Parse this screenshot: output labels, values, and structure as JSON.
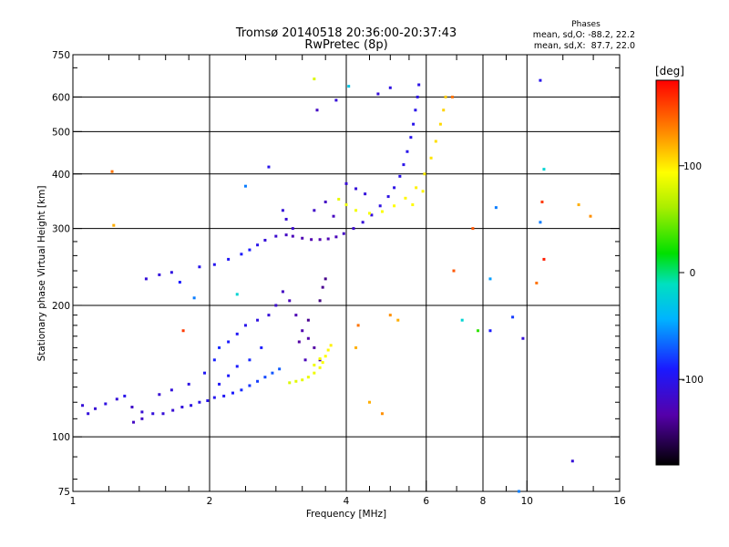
{
  "chart_data": {
    "type": "scatter",
    "title": "Tromsø 20140518 20:36:00-20:37:43",
    "subtitle": "RwPretec (8p)",
    "xlabel": "Frequency [MHz]",
    "ylabel": "Stationary phase Virtual Height [km]",
    "x_scale": "log",
    "y_scale": "log",
    "xlim": [
      1,
      16
    ],
    "ylim": [
      75,
      750
    ],
    "x_ticks": [
      1,
      2,
      4,
      6,
      8,
      10,
      16
    ],
    "x_tick_labels": [
      "1",
      "2",
      "4",
      "6",
      "8",
      "10",
      "16"
    ],
    "y_ticks": [
      75,
      100,
      200,
      300,
      400,
      500,
      600,
      750
    ],
    "y_tick_labels": [
      "75",
      "100",
      "200",
      "300",
      "400",
      "500",
      "600",
      "750"
    ],
    "grid": true,
    "stats": {
      "heading": "Phases",
      "line_o": "mean, sd,O: -88.2, 22.2",
      "line_x": "mean, sd,X:  87.7, 22.0"
    },
    "colorbar": {
      "label": "[deg]",
      "range": [
        -180,
        180
      ],
      "ticks": [
        100,
        0,
        -100
      ],
      "tick_labels": [
        "100",
        "0",
        "-100"
      ]
    },
    "series": [
      {
        "trace": "lower-o",
        "points": [
          [
            1.05,
            118,
            -110
          ],
          [
            1.08,
            113,
            -108
          ],
          [
            1.12,
            116,
            -112
          ],
          [
            1.18,
            119,
            -105
          ],
          [
            1.25,
            122,
            -110
          ],
          [
            1.3,
            124,
            -100
          ],
          [
            1.35,
            117,
            -118
          ],
          [
            1.42,
            114,
            -112
          ],
          [
            1.5,
            113,
            -108
          ],
          [
            1.58,
            113,
            -110
          ],
          [
            1.66,
            115,
            -112
          ],
          [
            1.74,
            117,
            -108
          ],
          [
            1.82,
            118,
            -105
          ],
          [
            1.9,
            120,
            -102
          ],
          [
            1.98,
            121,
            -100
          ],
          [
            2.05,
            123,
            -98
          ],
          [
            2.15,
            124,
            -95
          ],
          [
            2.25,
            126,
            -90
          ],
          [
            2.35,
            128,
            -85
          ],
          [
            2.45,
            131,
            -82
          ],
          [
            2.55,
            134,
            -80
          ],
          [
            2.65,
            137,
            -76
          ],
          [
            2.75,
            140,
            -72
          ],
          [
            2.85,
            143,
            -70
          ],
          [
            1.36,
            108,
            -120
          ],
          [
            1.42,
            110,
            -118
          ],
          [
            1.55,
            125,
            -112
          ],
          [
            1.65,
            128,
            -108
          ],
          [
            1.8,
            132,
            -104
          ],
          [
            1.95,
            140,
            -95
          ],
          [
            2.05,
            150,
            -88
          ],
          [
            2.1,
            160,
            -85
          ],
          [
            2.2,
            165,
            -90
          ],
          [
            2.3,
            172,
            -95
          ],
          [
            2.4,
            180,
            -100
          ],
          [
            2.55,
            185,
            -105
          ],
          [
            2.7,
            190,
            -110
          ],
          [
            2.8,
            200,
            -115
          ],
          [
            2.9,
            215,
            -120
          ],
          [
            3.0,
            205,
            -125
          ],
          [
            3.1,
            190,
            -128
          ],
          [
            3.2,
            175,
            -130
          ],
          [
            3.3,
            168,
            -132
          ],
          [
            3.4,
            160,
            -135
          ],
          [
            3.5,
            150,
            -138
          ],
          [
            3.55,
            220,
            -140
          ],
          [
            3.6,
            230,
            -142
          ],
          [
            3.5,
            205,
            -145
          ],
          [
            3.3,
            185,
            -140
          ],
          [
            3.15,
            165,
            -135
          ],
          [
            3.25,
            150,
            -125
          ],
          [
            2.6,
            160,
            -90
          ],
          [
            2.45,
            150,
            -85
          ],
          [
            2.3,
            145,
            -90
          ],
          [
            2.2,
            138,
            -92
          ],
          [
            2.1,
            132,
            -95
          ]
        ]
      },
      {
        "trace": "lower-x",
        "points": [
          [
            3.0,
            133,
            80
          ],
          [
            3.1,
            134,
            82
          ],
          [
            3.2,
            135,
            84
          ],
          [
            3.3,
            137,
            86
          ],
          [
            3.4,
            140,
            88
          ],
          [
            3.5,
            144,
            90
          ],
          [
            3.55,
            148,
            92
          ],
          [
            3.6,
            153,
            94
          ],
          [
            3.65,
            158,
            96
          ],
          [
            3.7,
            162,
            98
          ],
          [
            3.4,
            146,
            88
          ],
          [
            3.5,
            151,
            90
          ]
        ]
      },
      {
        "trace": "upper-o",
        "points": [
          [
            1.45,
            230,
            -110
          ],
          [
            1.55,
            235,
            -108
          ],
          [
            1.65,
            238,
            -105
          ],
          [
            1.9,
            245,
            -100
          ],
          [
            2.05,
            248,
            -98
          ],
          [
            2.2,
            255,
            -95
          ],
          [
            2.35,
            262,
            -92
          ],
          [
            2.45,
            268,
            -90
          ],
          [
            2.55,
            275,
            -100
          ],
          [
            2.65,
            282,
            -110
          ],
          [
            2.8,
            288,
            -115
          ],
          [
            2.95,
            290,
            -120
          ],
          [
            3.05,
            288,
            -125
          ],
          [
            3.2,
            285,
            -128
          ],
          [
            3.35,
            283,
            -130
          ],
          [
            3.5,
            283,
            -130
          ],
          [
            3.65,
            284,
            -128
          ],
          [
            3.8,
            287,
            -125
          ],
          [
            3.95,
            292,
            -120
          ],
          [
            4.15,
            300,
            -115
          ],
          [
            4.35,
            310,
            -110
          ],
          [
            4.55,
            322,
            -108
          ],
          [
            4.75,
            338,
            -105
          ],
          [
            4.95,
            355,
            -104
          ],
          [
            5.1,
            372,
            -103
          ],
          [
            5.25,
            395,
            -102
          ],
          [
            5.35,
            420,
            -101
          ],
          [
            5.45,
            450,
            -100
          ],
          [
            5.55,
            485,
            -100
          ],
          [
            5.62,
            520,
            -100
          ],
          [
            5.68,
            560,
            -101
          ],
          [
            5.74,
            600,
            -102
          ],
          [
            5.78,
            640,
            -103
          ],
          [
            2.9,
            330,
            -110
          ],
          [
            2.95,
            315,
            -112
          ],
          [
            3.05,
            300,
            -115
          ],
          [
            3.4,
            330,
            -118
          ],
          [
            3.6,
            345,
            -120
          ],
          [
            3.75,
            320,
            -122
          ],
          [
            4.0,
            380,
            -112
          ],
          [
            4.2,
            370,
            -110
          ],
          [
            4.4,
            360,
            -108
          ]
        ]
      },
      {
        "trace": "upper-x",
        "points": [
          [
            3.85,
            350,
            85
          ],
          [
            4.0,
            340,
            87
          ],
          [
            4.2,
            330,
            89
          ],
          [
            4.5,
            325,
            90
          ],
          [
            4.8,
            328,
            92
          ],
          [
            5.1,
            338,
            94
          ],
          [
            5.4,
            352,
            96
          ],
          [
            5.7,
            372,
            98
          ],
          [
            5.95,
            400,
            100
          ],
          [
            6.15,
            435,
            102
          ],
          [
            6.3,
            475,
            104
          ],
          [
            6.45,
            520,
            106
          ],
          [
            6.55,
            560,
            108
          ],
          [
            6.62,
            600,
            110
          ],
          [
            5.6,
            340,
            95
          ],
          [
            5.9,
            365,
            97
          ]
        ]
      },
      {
        "trace": "scattered",
        "points": [
          [
            1.22,
            405,
            140
          ],
          [
            1.23,
            305,
            120
          ],
          [
            2.7,
            415,
            -100
          ],
          [
            2.4,
            375,
            -60
          ],
          [
            3.4,
            660,
            80
          ],
          [
            4.05,
            635,
            -30
          ],
          [
            4.7,
            610,
            -110
          ],
          [
            5.0,
            630,
            -105
          ],
          [
            6.85,
            600,
            140
          ],
          [
            6.9,
            240,
            150
          ],
          [
            8.55,
            335,
            -60
          ],
          [
            8.3,
            230,
            -50
          ],
          [
            10.7,
            655,
            -100
          ],
          [
            10.9,
            410,
            -20
          ],
          [
            10.8,
            345,
            160
          ],
          [
            10.7,
            310,
            -60
          ],
          [
            10.9,
            255,
            170
          ],
          [
            10.5,
            225,
            140
          ],
          [
            13.0,
            340,
            120
          ],
          [
            13.8,
            320,
            130
          ],
          [
            12.6,
            88,
            -110
          ],
          [
            9.6,
            75,
            -60
          ],
          [
            7.6,
            300,
            150
          ],
          [
            8.3,
            175,
            -90
          ],
          [
            9.3,
            188,
            -80
          ],
          [
            9.8,
            168,
            -110
          ],
          [
            7.8,
            175,
            30
          ],
          [
            7.2,
            185,
            -20
          ],
          [
            5.2,
            185,
            120
          ],
          [
            5.0,
            190,
            130
          ],
          [
            4.5,
            120,
            120
          ],
          [
            4.8,
            113,
            130
          ],
          [
            4.25,
            180,
            140
          ],
          [
            4.2,
            160,
            120
          ],
          [
            1.75,
            175,
            160
          ],
          [
            1.85,
            208,
            -60
          ],
          [
            2.3,
            212,
            -20
          ],
          [
            1.72,
            226,
            -90
          ],
          [
            3.45,
            560,
            -120
          ],
          [
            3.8,
            590,
            -110
          ]
        ]
      }
    ]
  }
}
